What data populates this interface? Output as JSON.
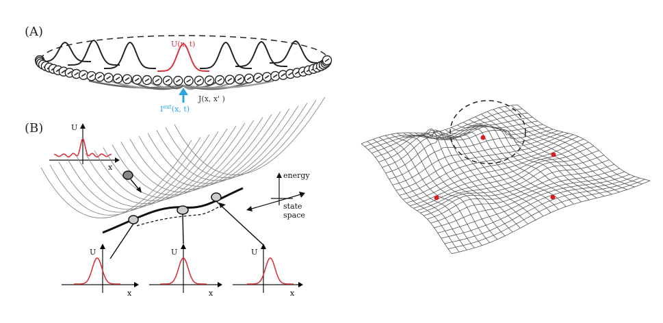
{
  "panel_a": {
    "label": "(A)",
    "u_label": "U(x, t)",
    "j_label": "J(x, x' )",
    "iext_label_main": "I",
    "iext_label_sup": "ext",
    "iext_label_args": "(x, t)",
    "colors": {
      "highlight": "#d8323c",
      "input": "#2ba7e0",
      "neuron": "#222222"
    }
  },
  "panel_b": {
    "label": "(B)",
    "energy_label": "energy",
    "state_space_label_1": "state",
    "state_space_label_2": "space",
    "u_axis": "U",
    "x_axis": "x"
  },
  "surface": {
    "colors": {
      "mesh": "#555555",
      "attractor": "#d81e1e"
    },
    "attractor_count": 4
  }
}
